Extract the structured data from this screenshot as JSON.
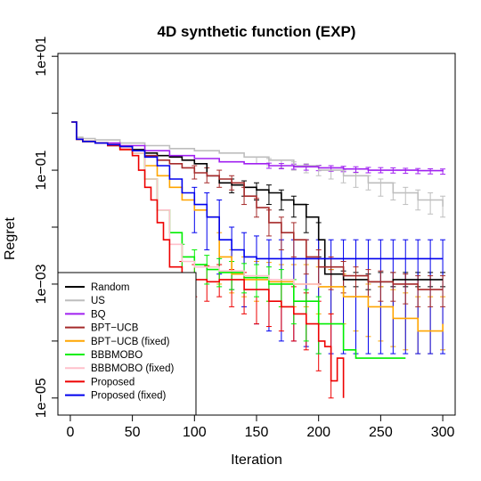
{
  "chart_data": {
    "type": "line",
    "title": "4D synthetic function (EXP)",
    "xlabel": "Iteration",
    "ylabel": "Regret",
    "xlim": [
      -10,
      310
    ],
    "ylim_log10": [
      -5.3,
      1.05
    ],
    "y_scale": "log",
    "x_ticks": [
      0,
      50,
      100,
      150,
      200,
      250,
      300
    ],
    "x_tick_labels": [
      "0",
      "50",
      "100",
      "150",
      "200",
      "250",
      "300"
    ],
    "y_ticks": [
      10.0,
      0.1,
      0.001,
      1e-05
    ],
    "y_tick_labels": [
      "1e+01",
      "1e−01",
      "1e−03",
      "1e−05"
    ],
    "grid": false,
    "legend_position": "bottom-left",
    "series": [
      {
        "name": "Random",
        "color": "#000000",
        "x": [
          1,
          5,
          10,
          20,
          30,
          40,
          50,
          60,
          70,
          80,
          90,
          100,
          110,
          120,
          130,
          140,
          150,
          160,
          170,
          180,
          190,
          200,
          205,
          220,
          240,
          260,
          280,
          300
        ],
        "y": [
          0.7,
          0.35,
          0.32,
          0.3,
          0.28,
          0.26,
          0.23,
          0.2,
          0.18,
          0.17,
          0.15,
          0.13,
          0.08,
          0.06,
          0.055,
          0.05,
          0.045,
          0.04,
          0.03,
          0.025,
          0.015,
          0.006,
          0.0015,
          0.0012,
          0.0011,
          0.0012,
          0.0012,
          0.0012
        ]
      },
      {
        "name": "US",
        "color": "#bebebe",
        "x": [
          1,
          5,
          10,
          20,
          40,
          60,
          80,
          100,
          120,
          140,
          160,
          180,
          200,
          220,
          240,
          260,
          280,
          300
        ],
        "y": [
          0.7,
          0.38,
          0.36,
          0.34,
          0.3,
          0.27,
          0.24,
          0.22,
          0.2,
          0.17,
          0.15,
          0.12,
          0.1,
          0.08,
          0.06,
          0.04,
          0.03,
          0.023
        ]
      },
      {
        "name": "BQ",
        "color": "#a020f0",
        "x": [
          1,
          5,
          10,
          20,
          40,
          60,
          80,
          100,
          120,
          140,
          160,
          180,
          200,
          220,
          240,
          260,
          280,
          300
        ],
        "y": [
          0.7,
          0.36,
          0.33,
          0.3,
          0.27,
          0.22,
          0.18,
          0.16,
          0.14,
          0.13,
          0.12,
          0.115,
          0.11,
          0.105,
          0.1,
          0.1,
          0.098,
          0.095
        ]
      },
      {
        "name": "BPT−UCB",
        "color": "#a52a2a",
        "x": [
          1,
          5,
          10,
          20,
          30,
          40,
          50,
          60,
          70,
          80,
          90,
          100,
          110,
          120,
          130,
          140,
          150,
          160,
          170,
          180,
          190,
          200,
          220,
          240,
          260,
          280,
          300
        ],
        "y": [
          0.7,
          0.35,
          0.32,
          0.3,
          0.28,
          0.26,
          0.22,
          0.18,
          0.15,
          0.13,
          0.11,
          0.09,
          0.08,
          0.07,
          0.06,
          0.035,
          0.022,
          0.012,
          0.008,
          0.006,
          0.003,
          0.002,
          0.0014,
          0.0011,
          0.001,
          0.0008,
          0.0008
        ]
      },
      {
        "name": "BPT−UCB (fixed)",
        "color": "#ffa500",
        "x": [
          1,
          5,
          10,
          20,
          30,
          40,
          50,
          60,
          70,
          80,
          90,
          100,
          110,
          120,
          130,
          140,
          160,
          180,
          200,
          220,
          240,
          260,
          280,
          300
        ],
        "y": [
          0.7,
          0.35,
          0.32,
          0.3,
          0.27,
          0.23,
          0.2,
          0.12,
          0.08,
          0.05,
          0.03,
          0.02,
          0.015,
          0.003,
          0.0015,
          0.0012,
          0.0011,
          0.001,
          0.0009,
          0.0006,
          0.0004,
          0.00025,
          0.00015,
          0.0002
        ]
      },
      {
        "name": "BBBMOBO",
        "color": "#00ee00",
        "x": [
          1,
          5,
          10,
          20,
          30,
          40,
          50,
          60,
          70,
          80,
          90,
          100,
          110,
          120,
          140,
          160,
          180,
          200,
          220,
          230,
          240,
          250,
          270
        ],
        "y": [
          0.7,
          0.36,
          0.33,
          0.3,
          0.27,
          0.24,
          0.2,
          0.07,
          0.02,
          0.008,
          0.003,
          0.0022,
          0.0018,
          0.0016,
          0.0013,
          0.001,
          0.0005,
          0.0002,
          7e-05,
          5e-05,
          5e-05,
          5e-05,
          5e-05
        ]
      },
      {
        "name": "BBBMOBO (fixed)",
        "color": "#ffc0cb",
        "x": [
          1,
          5,
          10,
          20,
          30,
          40,
          50,
          60,
          70,
          80,
          90,
          100,
          120,
          140,
          160,
          180,
          200
        ],
        "y": [
          0.7,
          0.36,
          0.33,
          0.3,
          0.27,
          0.24,
          0.2,
          0.07,
          0.02,
          0.005,
          0.0025,
          0.002,
          0.0017,
          0.0014,
          0.0012,
          0.001,
          0.0009
        ]
      },
      {
        "name": "Proposed",
        "color": "#ee0000",
        "x": [
          1,
          5,
          10,
          20,
          30,
          40,
          50,
          55,
          60,
          65,
          70,
          75,
          80,
          90,
          100,
          110,
          120,
          140,
          160,
          170,
          180,
          190,
          200,
          205,
          210,
          215,
          220
        ],
        "y": [
          0.7,
          0.35,
          0.32,
          0.3,
          0.27,
          0.23,
          0.18,
          0.1,
          0.05,
          0.03,
          0.012,
          0.006,
          0.002,
          0.0015,
          0.0012,
          0.0011,
          0.0012,
          0.0008,
          0.0005,
          0.0004,
          0.0003,
          0.0002,
          0.0001,
          8e-05,
          2e-05,
          5e-05,
          1e-05
        ]
      },
      {
        "name": "Proposed (fixed)",
        "color": "#0000ee",
        "x": [
          1,
          5,
          10,
          20,
          30,
          40,
          50,
          60,
          70,
          80,
          90,
          100,
          110,
          120,
          130,
          140,
          150,
          160,
          170,
          180,
          200,
          220,
          240,
          260,
          280,
          300
        ],
        "y": [
          0.7,
          0.35,
          0.32,
          0.3,
          0.28,
          0.26,
          0.22,
          0.17,
          0.12,
          0.07,
          0.04,
          0.025,
          0.015,
          0.006,
          0.004,
          0.003,
          0.0028,
          0.0028,
          0.0028,
          0.0028,
          0.0028,
          0.0028,
          0.0028,
          0.0028,
          0.0028,
          0.0028
        ]
      }
    ],
    "error_bars": [
      {
        "series": "US",
        "color": "#bebebe",
        "x": [
          150,
          160,
          170,
          180,
          190,
          200,
          210,
          220,
          230,
          240,
          250,
          260,
          270,
          280,
          290,
          300
        ],
        "y": [
          0.15,
          0.14,
          0.13,
          0.12,
          0.11,
          0.1,
          0.09,
          0.08,
          0.07,
          0.06,
          0.05,
          0.04,
          0.035,
          0.03,
          0.025,
          0.023
        ],
        "lo": [
          0.13,
          0.12,
          0.11,
          0.1,
          0.09,
          0.08,
          0.07,
          0.06,
          0.05,
          0.045,
          0.035,
          0.03,
          0.025,
          0.02,
          0.017,
          0.015
        ],
        "hi": [
          0.17,
          0.16,
          0.15,
          0.14,
          0.13,
          0.12,
          0.11,
          0.1,
          0.09,
          0.08,
          0.07,
          0.06,
          0.05,
          0.045,
          0.04,
          0.035
        ]
      },
      {
        "series": "BQ",
        "color": "#a020f0",
        "x": [
          160,
          170,
          180,
          190,
          200,
          210,
          220,
          230,
          240,
          250,
          260,
          270,
          280,
          290,
          300
        ],
        "y": [
          0.12,
          0.118,
          0.115,
          0.112,
          0.11,
          0.108,
          0.105,
          0.103,
          0.1,
          0.1,
          0.1,
          0.098,
          0.097,
          0.096,
          0.095
        ],
        "lo": [
          0.108,
          0.106,
          0.104,
          0.1,
          0.098,
          0.096,
          0.094,
          0.092,
          0.09,
          0.09,
          0.089,
          0.088,
          0.087,
          0.086,
          0.085
        ],
        "hi": [
          0.133,
          0.131,
          0.128,
          0.125,
          0.122,
          0.12,
          0.117,
          0.115,
          0.112,
          0.111,
          0.11,
          0.108,
          0.107,
          0.106,
          0.105
        ]
      },
      {
        "series": "Random",
        "color": "#000000",
        "x": [
          130,
          140,
          150,
          160,
          170,
          180,
          190,
          200,
          210,
          220,
          230,
          240,
          250,
          260,
          270,
          280,
          290,
          300
        ],
        "y": [
          0.055,
          0.05,
          0.045,
          0.04,
          0.03,
          0.025,
          0.015,
          0.006,
          0.0013,
          0.0012,
          0.0012,
          0.0011,
          0.0012,
          0.0012,
          0.0012,
          0.0012,
          0.0012,
          0.0012
        ],
        "lo": [
          0.04,
          0.035,
          0.03,
          0.025,
          0.02,
          0.015,
          0.008,
          0.003,
          0.0009,
          0.0009,
          0.0009,
          0.0008,
          0.0009,
          0.0009,
          0.0009,
          0.0009,
          0.0009,
          0.0009
        ],
        "hi": [
          0.07,
          0.065,
          0.06,
          0.055,
          0.045,
          0.035,
          0.025,
          0.012,
          0.0018,
          0.0017,
          0.0016,
          0.0015,
          0.0016,
          0.0016,
          0.0016,
          0.0016,
          0.0016,
          0.0016
        ]
      },
      {
        "series": "BPT−UCB (fixed)",
        "color": "#ffa500",
        "x": [
          120,
          130,
          140,
          150,
          160,
          170,
          180,
          190,
          200,
          210,
          220,
          230,
          240,
          250,
          260,
          270,
          280,
          290,
          300
        ],
        "y": [
          0.003,
          0.0015,
          0.0012,
          0.0011,
          0.0011,
          0.001,
          0.001,
          0.001,
          0.0009,
          0.0008,
          0.0006,
          0.0005,
          0.0004,
          0.0003,
          0.00025,
          0.0002,
          0.00015,
          0.00018,
          0.0002
        ],
        "lo": [
          0.001,
          0.0007,
          0.0006,
          0.0005,
          0.0005,
          0.0004,
          0.0004,
          0.0004,
          0.0003,
          0.0003,
          0.0002,
          0.00015,
          0.00012,
          0.0001,
          8e-05,
          7e-05,
          6e-05,
          6e-05,
          7e-05
        ],
        "hi": [
          0.008,
          0.004,
          0.003,
          0.0025,
          0.0024,
          0.0022,
          0.0022,
          0.0022,
          0.002,
          0.0018,
          0.0015,
          0.0012,
          0.001,
          0.0009,
          0.0008,
          0.0007,
          0.0006,
          0.0006,
          0.0006
        ]
      },
      {
        "series": "Proposed (fixed)",
        "color": "#0000ee",
        "x": [
          100,
          110,
          120,
          130,
          140,
          150,
          160,
          170,
          180,
          190,
          200,
          210,
          220,
          230,
          240,
          250,
          260,
          270,
          280,
          290,
          300
        ],
        "y": [
          0.025,
          0.015,
          0.006,
          0.004,
          0.003,
          0.0028,
          0.0028,
          0.0028,
          0.0028,
          0.0028,
          0.0028,
          0.0028,
          0.0028,
          0.0028,
          0.0028,
          0.0028,
          0.0028,
          0.0028,
          0.0028,
          0.0028,
          0.0028
        ],
        "lo": [
          0.008,
          0.004,
          0.0015,
          0.0008,
          0.0004,
          0.0002,
          0.00015,
          0.0001,
          0.0001,
          8e-05,
          6e-05,
          6e-05,
          6e-05,
          6e-05,
          6e-05,
          6e-05,
          6e-05,
          6e-05,
          6e-05,
          6e-05,
          6e-05
        ],
        "hi": [
          0.05,
          0.04,
          0.03,
          0.01,
          0.008,
          0.007,
          0.006,
          0.006,
          0.006,
          0.006,
          0.006,
          0.006,
          0.006,
          0.006,
          0.006,
          0.006,
          0.006,
          0.006,
          0.006,
          0.006,
          0.006
        ]
      },
      {
        "series": "Proposed",
        "color": "#ee0000",
        "x": [
          90,
          100,
          110,
          120,
          130,
          140,
          150,
          160,
          170,
          180,
          190,
          200,
          210
        ],
        "y": [
          0.0015,
          0.0012,
          0.0011,
          0.0012,
          0.0009,
          0.0008,
          0.0006,
          0.0005,
          0.0004,
          0.0003,
          0.0002,
          0.0001,
          5e-05
        ],
        "lo": [
          0.0008,
          0.0006,
          0.0005,
          0.0006,
          0.0004,
          0.0003,
          0.0002,
          0.00018,
          0.00015,
          0.0001,
          7e-05,
          3e-05,
          1e-05
        ],
        "hi": [
          0.0025,
          0.0022,
          0.0021,
          0.0022,
          0.0018,
          0.0016,
          0.0014,
          0.0012,
          0.001,
          0.0009,
          0.0007,
          0.0005,
          0.0003
        ]
      },
      {
        "series": "BPT−UCB",
        "color": "#a52a2a",
        "x": [
          100,
          110,
          120,
          130,
          140,
          150,
          160,
          170,
          180,
          190,
          200,
          210,
          220,
          230,
          240,
          250,
          260,
          270,
          280,
          290,
          300
        ],
        "y": [
          0.09,
          0.08,
          0.07,
          0.06,
          0.035,
          0.022,
          0.012,
          0.008,
          0.006,
          0.003,
          0.002,
          0.0016,
          0.0014,
          0.0012,
          0.0011,
          0.001,
          0.001,
          0.0009,
          0.0008,
          0.0008,
          0.0008
        ],
        "lo": [
          0.07,
          0.06,
          0.05,
          0.045,
          0.025,
          0.015,
          0.007,
          0.004,
          0.003,
          0.0015,
          0.001,
          0.0008,
          0.0007,
          0.0006,
          0.0006,
          0.0005,
          0.0005,
          0.00045,
          0.0004,
          0.0004,
          0.0004
        ],
        "hi": [
          0.12,
          0.11,
          0.1,
          0.08,
          0.05,
          0.032,
          0.02,
          0.015,
          0.012,
          0.006,
          0.004,
          0.003,
          0.0025,
          0.002,
          0.0018,
          0.0017,
          0.0016,
          0.0015,
          0.0014,
          0.0014,
          0.0014
        ]
      },
      {
        "series": "BBBMOBO",
        "color": "#00ee00",
        "x": [
          90,
          100,
          110,
          120,
          130,
          140,
          150,
          160,
          170,
          180,
          190,
          200
        ],
        "y": [
          0.003,
          0.0022,
          0.0018,
          0.0016,
          0.0014,
          0.0013,
          0.0012,
          0.001,
          0.0008,
          0.0005,
          0.0003,
          0.0002
        ],
        "lo": [
          0.0015,
          0.0012,
          0.001,
          0.0009,
          0.0008,
          0.0007,
          0.0006,
          0.0005,
          0.0004,
          0.0002,
          0.0001,
          6e-05
        ],
        "hi": [
          0.005,
          0.004,
          0.0032,
          0.0028,
          0.0025,
          0.0023,
          0.0022,
          0.002,
          0.0018,
          0.0012,
          0.0008,
          0.0006
        ]
      }
    ]
  }
}
